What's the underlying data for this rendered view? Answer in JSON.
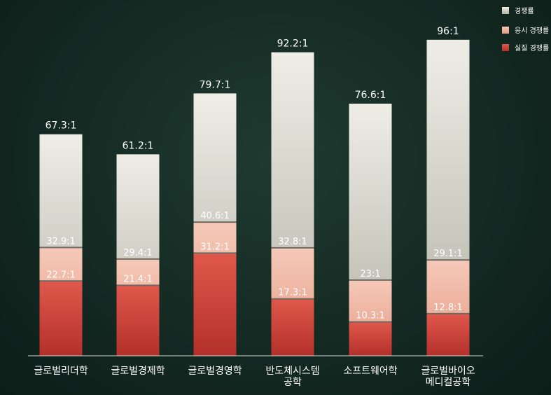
{
  "chart_data": {
    "type": "bar",
    "categories": [
      [
        "글로벌리더학"
      ],
      [
        "글로벌경제학"
      ],
      [
        "글로벌경영학"
      ],
      [
        "반도체시스템",
        "공학"
      ],
      [
        "소프트웨어학"
      ],
      [
        "글로벌바이오",
        "메디컬공학"
      ]
    ],
    "series": [
      {
        "name": "경쟁률",
        "values": [
          67.3,
          61.2,
          79.7,
          92.2,
          76.6,
          96
        ],
        "labels": [
          "67.3:1",
          "61.2:1",
          "79.7:1",
          "92.2:1",
          "76.6:1",
          "96:1"
        ]
      },
      {
        "name": "응시 경쟁률",
        "values": [
          32.9,
          29.4,
          40.6,
          32.8,
          23,
          29.1
        ],
        "labels": [
          "32.9:1",
          "29.4:1",
          "40.6:1",
          "32.8:1",
          "23:1",
          "29.1:1"
        ]
      },
      {
        "name": "실질 경쟁률",
        "values": [
          22.7,
          21.4,
          31.2,
          17.3,
          10.3,
          12.8
        ],
        "labels": [
          "22.7:1",
          "21.4:1",
          "31.2:1",
          "17.3:1",
          "10.3:1",
          "12.8:1"
        ]
      }
    ],
    "legend_position": "top-right",
    "ylim": [
      0,
      100
    ],
    "grid": false,
    "colors": {
      "total": "#e4e2d7",
      "exam": "#f2b8a3",
      "real": "#d2453a"
    }
  }
}
